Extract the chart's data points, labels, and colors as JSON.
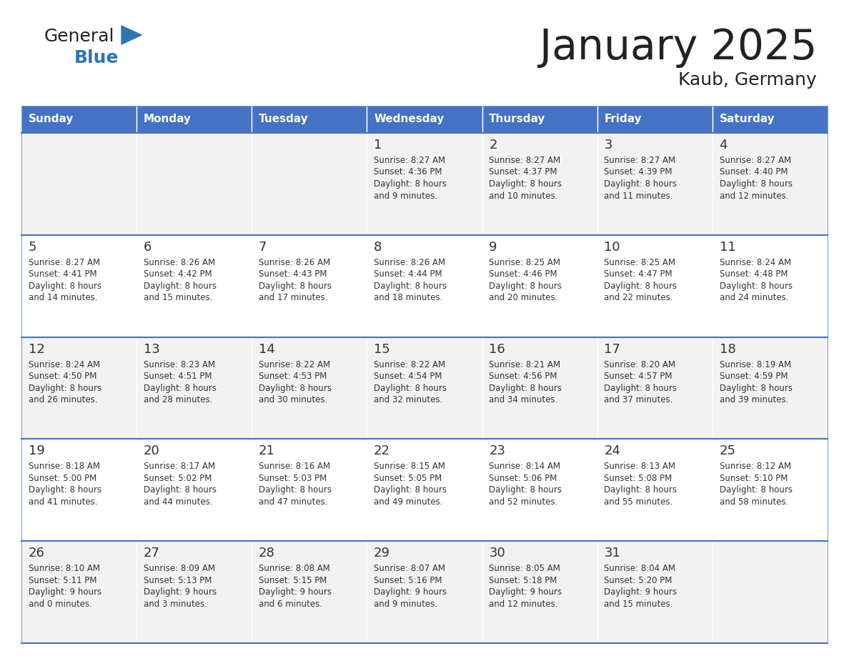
{
  "title": "January 2025",
  "subtitle": "Kaub, Germany",
  "days_of_week": [
    "Sunday",
    "Monday",
    "Tuesday",
    "Wednesday",
    "Thursday",
    "Friday",
    "Saturday"
  ],
  "header_bg": "#4472C4",
  "header_text": "#FFFFFF",
  "cell_bg_even": "#F2F2F2",
  "cell_bg_odd": "#FFFFFF",
  "cell_border": "#4472C4",
  "day_num_color": "#333333",
  "text_color": "#333333",
  "title_color": "#222222",
  "calendar": [
    [
      null,
      null,
      null,
      {
        "day": 1,
        "sunrise": "8:27 AM",
        "sunset": "4:36 PM",
        "daylight": "8 hours and 9 minutes"
      },
      {
        "day": 2,
        "sunrise": "8:27 AM",
        "sunset": "4:37 PM",
        "daylight": "8 hours and 10 minutes"
      },
      {
        "day": 3,
        "sunrise": "8:27 AM",
        "sunset": "4:39 PM",
        "daylight": "8 hours and 11 minutes"
      },
      {
        "day": 4,
        "sunrise": "8:27 AM",
        "sunset": "4:40 PM",
        "daylight": "8 hours and 12 minutes"
      }
    ],
    [
      {
        "day": 5,
        "sunrise": "8:27 AM",
        "sunset": "4:41 PM",
        "daylight": "8 hours and 14 minutes"
      },
      {
        "day": 6,
        "sunrise": "8:26 AM",
        "sunset": "4:42 PM",
        "daylight": "8 hours and 15 minutes"
      },
      {
        "day": 7,
        "sunrise": "8:26 AM",
        "sunset": "4:43 PM",
        "daylight": "8 hours and 17 minutes"
      },
      {
        "day": 8,
        "sunrise": "8:26 AM",
        "sunset": "4:44 PM",
        "daylight": "8 hours and 18 minutes"
      },
      {
        "day": 9,
        "sunrise": "8:25 AM",
        "sunset": "4:46 PM",
        "daylight": "8 hours and 20 minutes"
      },
      {
        "day": 10,
        "sunrise": "8:25 AM",
        "sunset": "4:47 PM",
        "daylight": "8 hours and 22 minutes"
      },
      {
        "day": 11,
        "sunrise": "8:24 AM",
        "sunset": "4:48 PM",
        "daylight": "8 hours and 24 minutes"
      }
    ],
    [
      {
        "day": 12,
        "sunrise": "8:24 AM",
        "sunset": "4:50 PM",
        "daylight": "8 hours and 26 minutes"
      },
      {
        "day": 13,
        "sunrise": "8:23 AM",
        "sunset": "4:51 PM",
        "daylight": "8 hours and 28 minutes"
      },
      {
        "day": 14,
        "sunrise": "8:22 AM",
        "sunset": "4:53 PM",
        "daylight": "8 hours and 30 minutes"
      },
      {
        "day": 15,
        "sunrise": "8:22 AM",
        "sunset": "4:54 PM",
        "daylight": "8 hours and 32 minutes"
      },
      {
        "day": 16,
        "sunrise": "8:21 AM",
        "sunset": "4:56 PM",
        "daylight": "8 hours and 34 minutes"
      },
      {
        "day": 17,
        "sunrise": "8:20 AM",
        "sunset": "4:57 PM",
        "daylight": "8 hours and 37 minutes"
      },
      {
        "day": 18,
        "sunrise": "8:19 AM",
        "sunset": "4:59 PM",
        "daylight": "8 hours and 39 minutes"
      }
    ],
    [
      {
        "day": 19,
        "sunrise": "8:18 AM",
        "sunset": "5:00 PM",
        "daylight": "8 hours and 41 minutes"
      },
      {
        "day": 20,
        "sunrise": "8:17 AM",
        "sunset": "5:02 PM",
        "daylight": "8 hours and 44 minutes"
      },
      {
        "day": 21,
        "sunrise": "8:16 AM",
        "sunset": "5:03 PM",
        "daylight": "8 hours and 47 minutes"
      },
      {
        "day": 22,
        "sunrise": "8:15 AM",
        "sunset": "5:05 PM",
        "daylight": "8 hours and 49 minutes"
      },
      {
        "day": 23,
        "sunrise": "8:14 AM",
        "sunset": "5:06 PM",
        "daylight": "8 hours and 52 minutes"
      },
      {
        "day": 24,
        "sunrise": "8:13 AM",
        "sunset": "5:08 PM",
        "daylight": "8 hours and 55 minutes"
      },
      {
        "day": 25,
        "sunrise": "8:12 AM",
        "sunset": "5:10 PM",
        "daylight": "8 hours and 58 minutes"
      }
    ],
    [
      {
        "day": 26,
        "sunrise": "8:10 AM",
        "sunset": "5:11 PM",
        "daylight": "9 hours and 0 minutes"
      },
      {
        "day": 27,
        "sunrise": "8:09 AM",
        "sunset": "5:13 PM",
        "daylight": "9 hours and 3 minutes"
      },
      {
        "day": 28,
        "sunrise": "8:08 AM",
        "sunset": "5:15 PM",
        "daylight": "9 hours and 6 minutes"
      },
      {
        "day": 29,
        "sunrise": "8:07 AM",
        "sunset": "5:16 PM",
        "daylight": "9 hours and 9 minutes"
      },
      {
        "day": 30,
        "sunrise": "8:05 AM",
        "sunset": "5:18 PM",
        "daylight": "9 hours and 12 minutes"
      },
      {
        "day": 31,
        "sunrise": "8:04 AM",
        "sunset": "5:20 PM",
        "daylight": "9 hours and 15 minutes"
      },
      null
    ]
  ],
  "logo_color_general": "#222222",
  "logo_color_blue": "#2E75B6",
  "logo_triangle_color": "#2E75B6",
  "fig_width": 11.88,
  "fig_height": 9.18,
  "dpi": 100
}
